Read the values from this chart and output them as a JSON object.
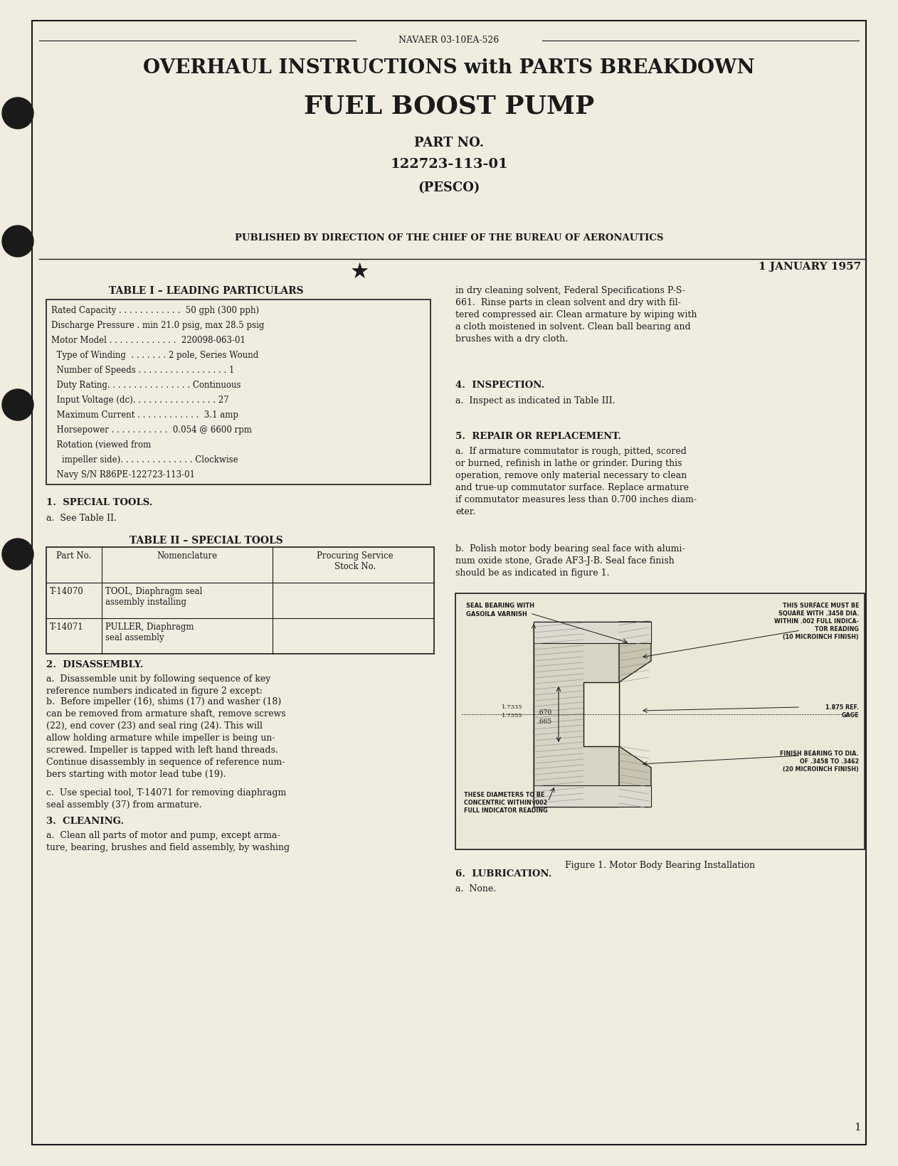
{
  "bg_color": "#f5f2e8",
  "page_bg": "#f0ece0",
  "border_color": "#1a1a1a",
  "text_color": "#1a1a1a",
  "navaer": "NAVAER 03-10EA-526",
  "title_line1": "OVERHAUL INSTRUCTIONS with PARTS BREAKDOWN",
  "title_line2": "FUEL BOOST PUMP",
  "part_no_label": "PART NO.",
  "part_no": "122723-113-01",
  "pesco": "(PESCO)",
  "published": "PUBLISHED BY DIRECTION OF THE CHIEF OF THE BUREAU OF AERONAUTICS",
  "date": "1 JANUARY 1957",
  "table1_title": "TABLE I – LEADING PARTICULARS",
  "table1_rows": [
    "Rated Capacity . . . . . . . . . . . .  50 gph (300 pph)",
    "Discharge Pressure . min 21.0 psig, max 28.5 psig",
    "Motor Model . . . . . . . . . . . . .  220098-063-01",
    "  Type of Winding  . . . . . . . 2 pole, Series Wound",
    "  Number of Speeds . . . . . . . . . . . . . . . . . 1",
    "  Duty Rating. . . . . . . . . . . . . . . . Continuous",
    "  Input Voltage (dc). . . . . . . . . . . . . . . . 27",
    "  Maximum Current . . . . . . . . . . . .  3.1 amp",
    "  Horsepower . . . . . . . . . . .  0.054 @ 6600 rpm",
    "  Rotation (viewed from",
    "    impeller side). . . . . . . . . . . . . . Clockwise",
    "  Navy S/N R86PE-122723-113-01"
  ],
  "section1_title": "1.  SPECIAL TOOLS.",
  "section1_text": "a.  See Table II.",
  "table2_title": "TABLE II – SPECIAL TOOLS",
  "table2_headers": [
    "Part No.",
    "Nomenclature",
    "Procuring Service\nStock No."
  ],
  "table2_rows": [
    [
      "T-14070",
      "TOOL, Diaphragm seal\nassembly installing",
      ""
    ],
    [
      "T-14071",
      "PULLER, Diaphragm\nseal assembly",
      ""
    ]
  ],
  "section2_title": "2.  DISASSEMBLY.",
  "section2_text": [
    "a.  Disassemble unit by following sequence of key reference numbers indicated in figure 2 except:",
    "b.  Before impeller (16), shims (17) and washer (18) can be removed from armature shaft, remove screws (22), end cover (23) and seal ring (24). This will allow holding armature while impeller is being unscrewed. Impeller is tapped with left hand threads. Continue disassembly in sequence of reference numbers starting with motor lead tube (19).",
    "c.  Use special tool, T-14071 for removing diaphragm seal assembly (37) from armature."
  ],
  "section3_title": "3.  CLEANING.",
  "section3_text": [
    "a.  Clean all parts of motor and pump, except armature, bearing, brushes and field assembly, by washing"
  ],
  "right_col_cleaning": "in dry cleaning solvent, Federal Specifications P-S-661. Rinse parts in clean solvent and dry with filtered compressed air. Clean armature by wiping with a cloth moistened in solvent. Clean ball bearing and brushes with a dry cloth.",
  "section4_title": "4.  INSPECTION.",
  "section4_text": "a.  Inspect as indicated in Table III.",
  "section5_title": "5.  REPAIR OR REPLACEMENT.",
  "section5_text": [
    "a.  If armature commutator is rough, pitted, scored or burned, refinish in lathe or grinder. During this operation, remove only material necessary to clean and true-up commutator surface. Replace armature if commutator measures less than 0.700 inches diameter.",
    "b.  Polish motor body bearing seal face with aluminum oxide stone, Grade AF3-J-B. Seal face finish should be as indicated in figure 1."
  ],
  "figure1_caption": "Figure 1. Motor Body Bearing Installation",
  "section6_title": "6.  LUBRICATION.",
  "section6_text": "a.  None.",
  "page_number": "1"
}
